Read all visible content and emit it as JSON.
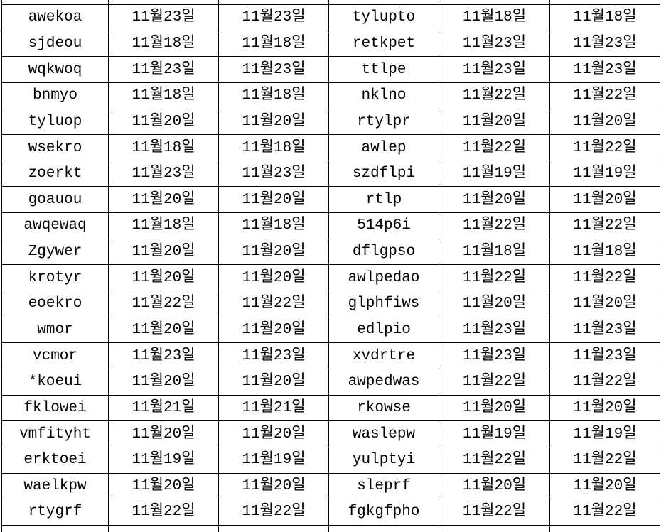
{
  "table": {
    "description_colors": {
      "border": "#000000",
      "text": "#000000",
      "background": "#ffffff"
    },
    "rows": [
      [
        "awekoa",
        "11월23일",
        "11월23일",
        "tylupto",
        "11월18일",
        "11월18일"
      ],
      [
        "sjdeou",
        "11월18일",
        "11월18일",
        "retkpet",
        "11월23일",
        "11월23일"
      ],
      [
        "wqkwoq",
        "11월23일",
        "11월23일",
        "ttlpe",
        "11월23일",
        "11월23일"
      ],
      [
        "bnmyo",
        "11월18일",
        "11월18일",
        "nklno",
        "11월22일",
        "11월22일"
      ],
      [
        "tyluop",
        "11월20일",
        "11월20일",
        "rtylpr",
        "11월20일",
        "11월20일"
      ],
      [
        "wsekro",
        "11월18일",
        "11월18일",
        "awlep",
        "11월22일",
        "11월22일"
      ],
      [
        "zoerkt",
        "11월23일",
        "11월23일",
        "szdflpi",
        "11월19일",
        "11월19일"
      ],
      [
        "goauou",
        "11월20일",
        "11월20일",
        "rtlp",
        "11월20일",
        "11월20일"
      ],
      [
        "awqewaq",
        "11월18일",
        "11월18일",
        "514p6i",
        "11월22일",
        "11월22일"
      ],
      [
        "Zgywer",
        "11월20일",
        "11월20일",
        "dflgpso",
        "11월18일",
        "11월18일"
      ],
      [
        "krotyr",
        "11월20일",
        "11월20일",
        "awlpedao",
        "11월22일",
        "11월22일"
      ],
      [
        "eoekro",
        "11월22일",
        "11월22일",
        "glphfiws",
        "11월20일",
        "11월20일"
      ],
      [
        "wmor",
        "11월20일",
        "11월20일",
        "edlpio",
        "11월23일",
        "11월23일"
      ],
      [
        "vcmor",
        "11월23일",
        "11월23일",
        "xvdrtre",
        "11월23일",
        "11월23일"
      ],
      [
        "*koeui",
        "11월20일",
        "11월20일",
        "awpedwas",
        "11월22일",
        "11월22일"
      ],
      [
        "fklowei",
        "11월21일",
        "11월21일",
        "rkowse",
        "11월20일",
        "11월20일"
      ],
      [
        "vmfityht",
        "11월20일",
        "11월20일",
        "waslepw",
        "11월19일",
        "11월19일"
      ],
      [
        "erktoei",
        "11월19일",
        "11월19일",
        "yulptyi",
        "11월22일",
        "11월22일"
      ],
      [
        "waelkpw",
        "11월20일",
        "11월20일",
        "sleprf",
        "11월20일",
        "11월20일"
      ],
      [
        "rtygrf",
        "11월22일",
        "11월22일",
        "fgkgfpho",
        "11월22일",
        "11월22일"
      ]
    ]
  }
}
